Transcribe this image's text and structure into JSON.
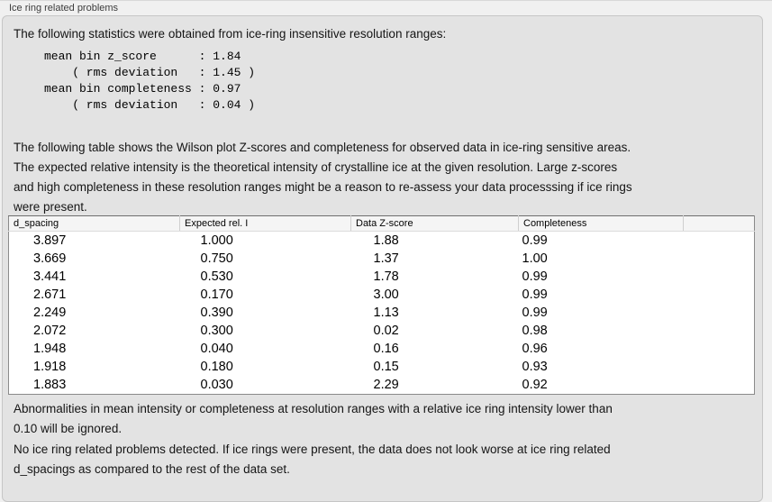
{
  "colors": {
    "page_bg": "#f0f0f0",
    "box_bg": "#e3e3e3",
    "box_border": "#c6c6c6",
    "table_border": "#8a8a8a",
    "header_bg": "#f5f5f5"
  },
  "group": {
    "title": "Ice ring related problems"
  },
  "intro": "The following statistics were obtained from ice-ring insensitive resolution ranges:",
  "stats": {
    "lines": [
      "mean bin z_score      : 1.84",
      "    ( rms deviation   : 1.45 )",
      "mean bin completeness : 0.97",
      "    ( rms deviation   : 0.04 )"
    ]
  },
  "table_intro": "The following table shows the Wilson plot Z-scores and completeness for observed data in ice-ring sensitive areas.\nThe expected relative intensity is the theoretical intensity of crystalline ice at the given resolution. Large z-scores\nand high completeness in these resolution ranges might be a reason to re-assess your data processsing if ice rings\nwere present.",
  "table": {
    "columns": [
      "d_spacing",
      "Expected rel. I",
      "Data Z-score",
      "Completeness",
      ""
    ],
    "rows": [
      [
        "3.897",
        "1.000",
        "1.88",
        "0.99"
      ],
      [
        "3.669",
        "0.750",
        "1.37",
        "1.00"
      ],
      [
        "3.441",
        "0.530",
        "1.78",
        "0.99"
      ],
      [
        "2.671",
        "0.170",
        "3.00",
        "0.99"
      ],
      [
        "2.249",
        "0.390",
        "1.13",
        "0.99"
      ],
      [
        "2.072",
        "0.300",
        "0.02",
        "0.98"
      ],
      [
        "1.948",
        "0.040",
        "0.16",
        "0.96"
      ],
      [
        "1.918",
        "0.180",
        "0.15",
        "0.93"
      ],
      [
        "1.883",
        "0.030",
        "2.29",
        "0.92"
      ]
    ]
  },
  "note_ignore": "Abnormalities in mean intensity or completeness at resolution ranges with a relative ice ring intensity lower than\n0.10 will be ignored.",
  "conclusion": "No ice ring related problems detected. If ice rings were present, the data does not look worse at ice ring related\nd_spacings as compared to the rest of the data set."
}
